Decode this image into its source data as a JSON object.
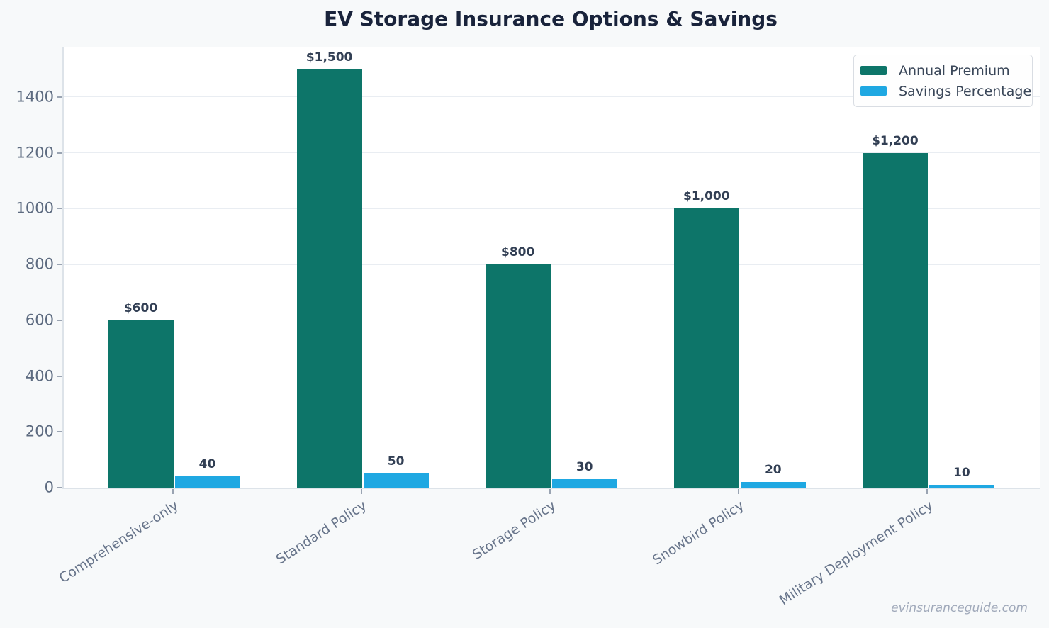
{
  "title": "EV Storage Insurance Options & Savings",
  "watermark": "evinsuranceguide.com",
  "colors": {
    "annual_premium": "#0d7569",
    "savings_percentage": "#1fa8e2",
    "background": "#f7f9fa",
    "plot_background": "#ffffff",
    "gridline": "#e9edf2",
    "title_text": "#19233b",
    "tick_text": "#5d6b80",
    "value_label_text": "#323f54"
  },
  "chart_data": {
    "type": "bar",
    "title": "EV Storage Insurance Options & Savings",
    "xlabel": "",
    "ylabel": "",
    "categories": [
      "Comprehensive-only",
      "Standard Policy",
      "Storage Policy",
      "Snowbird Policy",
      "Military Deployment Policy"
    ],
    "series": [
      {
        "name": "Annual Premium",
        "color": "#0d7569",
        "values": [
          600,
          1500,
          800,
          1000,
          1200
        ],
        "labels": [
          "$600",
          "$1,500",
          "$800",
          "$1,000",
          "$1,200"
        ]
      },
      {
        "name": "Savings Percentage",
        "color": "#1fa8e2",
        "values": [
          40,
          50,
          30,
          20,
          10
        ],
        "labels": [
          "40",
          "50",
          "30",
          "20",
          "10"
        ]
      }
    ],
    "ylim": [
      0,
      1580
    ],
    "yticks": [
      0,
      200,
      400,
      600,
      800,
      1000,
      1200,
      1400
    ],
    "grid": true,
    "legend_position": "upper right"
  }
}
